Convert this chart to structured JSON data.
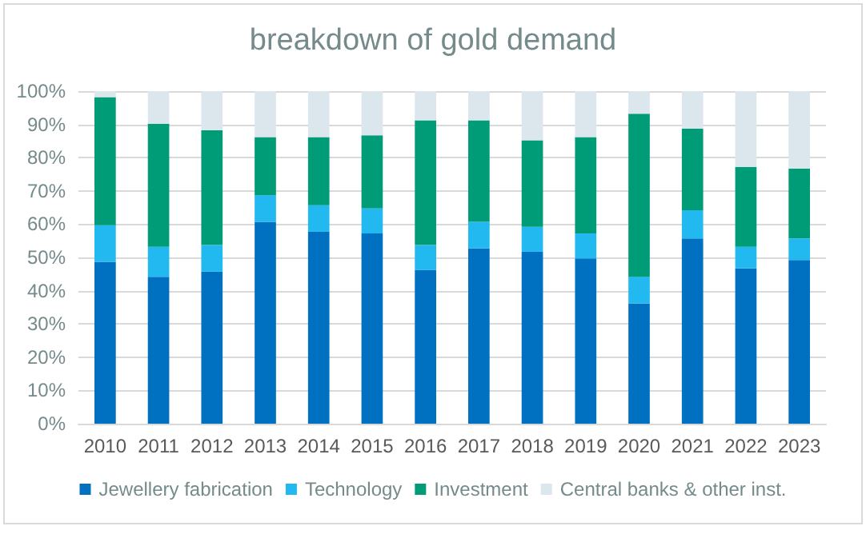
{
  "chart_data": {
    "type": "bar",
    "title": "breakdown of gold demand",
    "stacked": true,
    "categories": [
      "2010",
      "2011",
      "2012",
      "2013",
      "2014",
      "2015",
      "2016",
      "2017",
      "2018",
      "2019",
      "2020",
      "2021",
      "2022",
      "2023"
    ],
    "series": [
      {
        "name": "Jewellery fabrication",
        "color": "#0070c0",
        "values": [
          48.7,
          44.2,
          45.7,
          60.7,
          57.7,
          57.2,
          46.2,
          52.7,
          51.7,
          49.7,
          36.2,
          55.7,
          46.7,
          49.2
        ]
      },
      {
        "name": "Technology",
        "color": "#22b8f0",
        "values": [
          11,
          9,
          8,
          8,
          8,
          7.5,
          7.5,
          8,
          7.5,
          7.5,
          8,
          8.5,
          6.5,
          6.5
        ]
      },
      {
        "name": "Investment",
        "color": "#009b77",
        "values": [
          38.5,
          37,
          34.5,
          17.5,
          20.5,
          22,
          37.5,
          30.5,
          26,
          29,
          49,
          24.5,
          24,
          21
        ]
      },
      {
        "name": "Central banks & other inst.",
        "color": "#dce6ed",
        "values": [
          1.8,
          9.8,
          11.8,
          13.8,
          13.8,
          13.3,
          8.8,
          8.8,
          14.8,
          13.8,
          6.8,
          11.3,
          22.8,
          23.3
        ]
      }
    ],
    "ylim": [
      0,
      100
    ],
    "yticks": [
      {
        "value": 0,
        "label": "0%"
      },
      {
        "value": 10,
        "label": "10%"
      },
      {
        "value": 20,
        "label": "20%"
      },
      {
        "value": 30,
        "label": "30%"
      },
      {
        "value": 40,
        "label": "40%"
      },
      {
        "value": 50,
        "label": "50%"
      },
      {
        "value": 60,
        "label": "60%"
      },
      {
        "value": 70,
        "label": "70%"
      },
      {
        "value": 80,
        "label": "80%"
      },
      {
        "value": 90,
        "label": "90%"
      },
      {
        "value": 100,
        "label": "100%"
      }
    ],
    "grid": "y",
    "legend": "bottom"
  }
}
